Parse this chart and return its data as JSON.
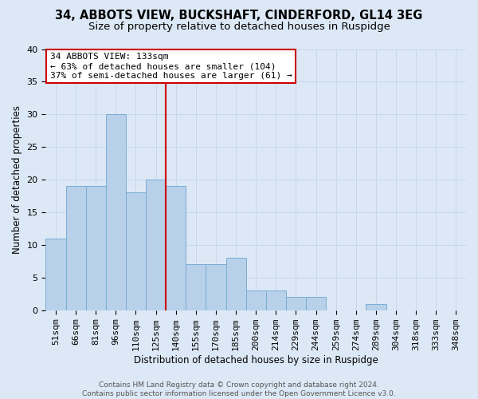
{
  "title1": "34, ABBOTS VIEW, BUCKSHAFT, CINDERFORD, GL14 3EG",
  "title2": "Size of property relative to detached houses in Ruspidge",
  "xlabel": "Distribution of detached houses by size in Ruspidge",
  "ylabel": "Number of detached properties",
  "categories": [
    "51sqm",
    "66sqm",
    "81sqm",
    "96sqm",
    "110sqm",
    "125sqm",
    "140sqm",
    "155sqm",
    "170sqm",
    "185sqm",
    "200sqm",
    "214sqm",
    "229sqm",
    "244sqm",
    "259sqm",
    "274sqm",
    "289sqm",
    "304sqm",
    "318sqm",
    "333sqm",
    "348sqm"
  ],
  "values": [
    11,
    19,
    19,
    30,
    18,
    20,
    19,
    7,
    7,
    8,
    3,
    3,
    2,
    2,
    0,
    0,
    1,
    0,
    0,
    0,
    0
  ],
  "bar_color": "#b8d0ea",
  "bar_edge_color": "#7aadd4",
  "vline_color": "#cc0000",
  "vline_x_index": 6,
  "annotation_text": "34 ABBOTS VIEW: 133sqm\n← 63% of detached houses are smaller (104)\n37% of semi-detached houses are larger (61) →",
  "annotation_box_color": "#ffffff",
  "annotation_box_edge": "#cc0000",
  "ylim": [
    0,
    40
  ],
  "yticks": [
    0,
    5,
    10,
    15,
    20,
    25,
    30,
    35,
    40
  ],
  "grid_color": "#c5d5e8",
  "background_color": "#dce8f5",
  "footer_text": "Contains HM Land Registry data © Crown copyright and database right 2024.\nContains public sector information licensed under the Open Government Licence v3.0.",
  "title1_fontsize": 10.5,
  "title2_fontsize": 9.5,
  "annotation_fontsize": 8,
  "xlabel_fontsize": 8.5,
  "ylabel_fontsize": 8.5,
  "tick_fontsize": 8,
  "footer_fontsize": 6.5
}
